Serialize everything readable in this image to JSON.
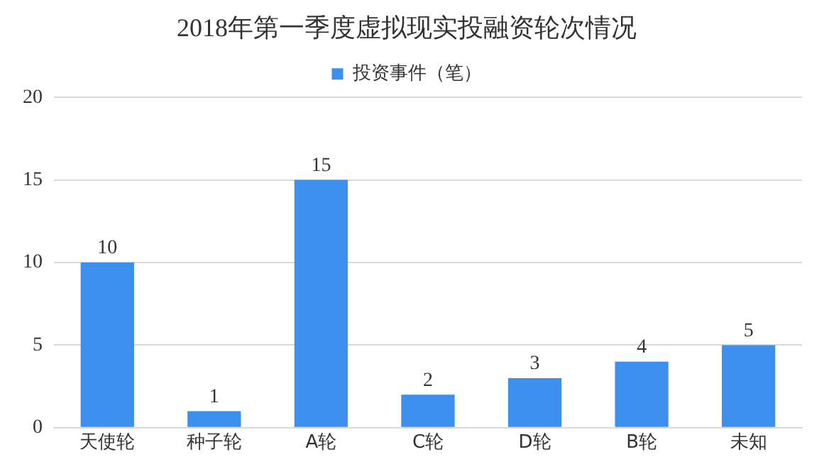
{
  "chart_data": {
    "type": "bar",
    "title": "2018年第一季度虚拟现实投融资轮次情况",
    "categories": [
      "天使轮",
      "种子轮",
      "A轮",
      "C轮",
      "D轮",
      "B轮",
      "未知"
    ],
    "series": [
      {
        "name": "投资事件（笔）",
        "color": "#3d8fee",
        "values": [
          10,
          1,
          15,
          2,
          3,
          4,
          5
        ]
      }
    ],
    "ylim": [
      0,
      20
    ],
    "yticks": [
      0,
      5,
      10,
      15,
      20
    ],
    "grid": "y",
    "legend": "top",
    "data_labels": true
  }
}
